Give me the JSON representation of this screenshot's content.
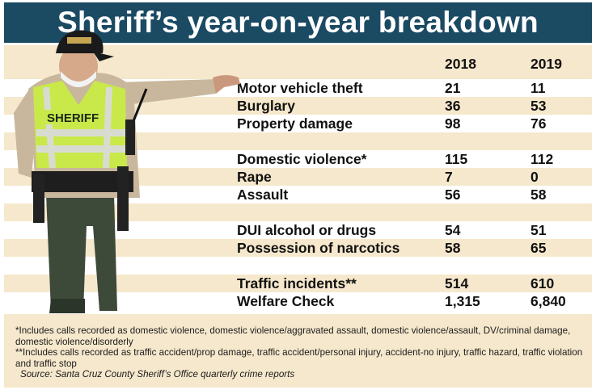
{
  "title": "Sheriff’s year-on-year breakdown",
  "columns": [
    "2018",
    "2019"
  ],
  "rows": [
    {
      "label": "Motor vehicle theft",
      "v2018": "21",
      "v2019": "11"
    },
    {
      "label": "Burglary",
      "v2018": "36",
      "v2019": "53"
    },
    {
      "label": "Property damage",
      "v2018": "98",
      "v2019": "76"
    },
    {
      "label": "Domestic violence*",
      "v2018": "115",
      "v2019": "112"
    },
    {
      "label": "Rape",
      "v2018": "7",
      "v2019": "0"
    },
    {
      "label": "Assault",
      "v2018": "56",
      "v2019": "58"
    },
    {
      "label": "DUI alcohol or drugs",
      "v2018": "54",
      "v2019": "51"
    },
    {
      "label": "Possession of narcotics",
      "v2018": "58",
      "v2019": "65"
    },
    {
      "label": "Traffic incidents**",
      "v2018": "514",
      "v2019": "610"
    },
    {
      "label": "Welfare Check",
      "v2018": "1,315",
      "v2019": "6,840"
    }
  ],
  "badge_text": "SHERIFF",
  "footnotes": {
    "domestic": "*Includes calls recorded as domestic violence, domestic violence/aggravated assault, domestic violence/assault, DV/criminal damage, domestic violence/disorderly",
    "traffic": "**Includes calls recorded as traffic accident/prop damage, traffic accident/personal injury, accident-no injury, traffic hazard, traffic violation and traffic stop",
    "source": "Source: Santa Cruz County Sheriff’s Office quarterly crime reports"
  },
  "colors": {
    "title_bar": "#1b4a63",
    "shade": "#f6e8cc",
    "vest": "#c9e84a",
    "uniform_pants": "#3d4a3a",
    "shirt": "#c9b79d"
  }
}
